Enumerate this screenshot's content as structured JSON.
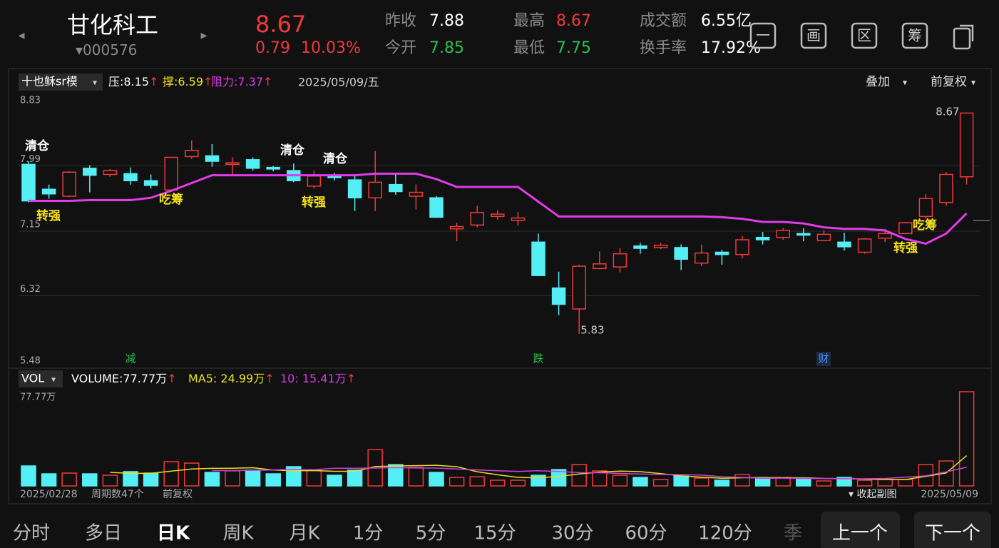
{
  "header": {
    "name": "甘化科工",
    "code_prefix": "▾",
    "code": "000576",
    "price": "8.67",
    "change": "0.79",
    "pct": "10.03%",
    "prev_label": "昨收",
    "prev": "7.88",
    "open_label": "今开",
    "open": "7.85",
    "high_label": "最高",
    "high": "8.67",
    "low_label": "最低",
    "low": "7.75",
    "amount_label": "成交额",
    "amount": "6.55亿",
    "turnover_label": "换手率",
    "turnover": "17.92%",
    "icons": [
      "一",
      "画",
      "区",
      "筹"
    ]
  },
  "toolbar": {
    "indicator": "十也稣sr模",
    "press": "压:8.15",
    "support": "撑:6.59",
    "resist": "阻力:7.37",
    "arrow": "↑",
    "date": "2025/05/09/五",
    "overlay": "叠加",
    "adjust": "前复权"
  },
  "chart_data": [
    {
      "type": "candlestick",
      "ylim": [
        5.48,
        8.83
      ],
      "yticks": [
        8.83,
        7.99,
        7.15,
        6.32,
        5.48
      ],
      "up_color": "#f03a3a",
      "down_color": "#54eef5",
      "grid": true,
      "open": [
        8.01,
        7.69,
        7.6,
        7.96,
        7.88,
        7.89,
        7.8,
        7.68,
        8.11,
        8.12,
        8.01,
        8.07,
        7.97,
        7.93,
        7.73,
        7.87,
        7.81,
        7.58,
        7.75,
        7.6,
        7.58,
        7.18,
        7.23,
        7.34,
        7.29,
        7.01,
        6.42,
        6.15,
        6.67,
        6.69,
        6.96,
        6.94,
        6.94,
        6.74,
        6.88,
        6.85,
        7.07,
        7.07,
        7.12,
        7.03,
        7.01,
        6.88,
        7.06,
        7.12,
        7.34,
        7.52,
        7.85
      ],
      "high": [
        8.05,
        7.75,
        7.92,
        8.0,
        7.95,
        7.97,
        7.88,
        8.1,
        8.32,
        8.27,
        8.1,
        8.1,
        7.99,
        8.02,
        7.93,
        7.9,
        7.88,
        8.18,
        7.88,
        7.75,
        7.6,
        7.26,
        7.48,
        7.42,
        7.4,
        7.12,
        6.63,
        6.72,
        6.89,
        6.93,
        7.0,
        7.0,
        6.98,
        6.98,
        6.91,
        7.09,
        7.14,
        7.19,
        7.19,
        7.16,
        7.13,
        7.06,
        7.18,
        7.27,
        7.63,
        7.91,
        8.67
      ],
      "low": [
        7.52,
        7.57,
        7.59,
        7.65,
        7.85,
        7.75,
        7.7,
        7.67,
        8.08,
        7.98,
        7.88,
        7.93,
        7.92,
        7.78,
        7.7,
        7.8,
        7.41,
        7.41,
        7.62,
        7.43,
        7.32,
        7.02,
        7.2,
        7.3,
        7.22,
        6.58,
        6.07,
        5.83,
        6.66,
        6.62,
        6.86,
        6.92,
        6.65,
        6.7,
        6.72,
        6.8,
        6.98,
        7.04,
        7.02,
        7.02,
        6.9,
        6.86,
        7.01,
        7.11,
        7.31,
        7.48,
        7.75
      ],
      "close": [
        7.54,
        7.63,
        7.91,
        7.87,
        7.93,
        7.8,
        7.74,
        8.1,
        8.19,
        8.05,
        8.03,
        7.96,
        7.95,
        7.8,
        7.86,
        7.84,
        7.58,
        7.78,
        7.66,
        7.65,
        7.33,
        7.21,
        7.39,
        7.37,
        7.32,
        6.58,
        6.21,
        6.7,
        6.73,
        6.86,
        6.93,
        6.97,
        6.79,
        6.87,
        6.85,
        7.04,
        7.04,
        7.16,
        7.1,
        7.11,
        6.95,
        7.05,
        7.12,
        7.26,
        7.57,
        7.88,
        8.67
      ],
      "line": {
        "color": "#e03ce8",
        "values": [
          7.54,
          7.54,
          7.54,
          7.55,
          7.55,
          7.55,
          7.58,
          7.67,
          7.77,
          7.87,
          7.87,
          7.87,
          7.87,
          7.87,
          7.87,
          7.87,
          7.87,
          7.89,
          7.89,
          7.89,
          7.82,
          7.72,
          7.72,
          7.72,
          7.72,
          7.53,
          7.34,
          7.34,
          7.34,
          7.34,
          7.34,
          7.34,
          7.34,
          7.34,
          7.33,
          7.31,
          7.27,
          7.27,
          7.25,
          7.2,
          7.18,
          7.18,
          7.16,
          7.05,
          6.99,
          7.12,
          7.38
        ]
      },
      "annotations": [
        {
          "text": "清仓",
          "color": "#ffffff"
        },
        {
          "text": "转强",
          "color": "#f5e11c"
        },
        {
          "text": "吃筹",
          "color": "#f5e11c"
        },
        {
          "text": "清仓",
          "color": "#ffffff"
        },
        {
          "text": "转强",
          "color": "#f5e11c"
        },
        {
          "text": "清仓",
          "color": "#ffffff"
        },
        {
          "text": "转强",
          "color": "#f5e11c"
        },
        {
          "text": "吃筹",
          "color": "#f5e11c"
        }
      ],
      "events": [
        {
          "text": "减",
          "color": "#2fbf4f"
        },
        {
          "text": "跌",
          "color": "#2fbf4f"
        },
        {
          "text": "财",
          "color": "#4a8cf0"
        }
      ]
    },
    {
      "type": "bar",
      "label": "VOL",
      "volume_label": "VOLUME:77.77万",
      "ma5_label": "MA5: 24.99万",
      "ma10_label": "10: 15.41万",
      "ylim": [
        0,
        77.77
      ],
      "yticks": [
        {
          "value": 77.77,
          "label": "77.77万"
        }
      ],
      "values": [
        16.5,
        10,
        10.6,
        10,
        8.8,
        11.8,
        10.6,
        20,
        18.8,
        11.2,
        12.4,
        13,
        10,
        15.9,
        13,
        8.8,
        13,
        30,
        17.6,
        15.3,
        11.2,
        7,
        7.6,
        4.7,
        4.7,
        8.8,
        13.5,
        17.6,
        12.4,
        8.8,
        7,
        5.3,
        8.2,
        6.5,
        4.7,
        9.4,
        6.5,
        7,
        5.9,
        4.1,
        7,
        4.7,
        5.3,
        5.3,
        17.6,
        20.6,
        77.77
      ],
      "ma5": {
        "color": "#e8e020",
        "values": [
          null,
          null,
          null,
          null,
          11.2,
          10.4,
          10.4,
          12.2,
          14,
          14.5,
          14.6,
          15,
          13.1,
          12.5,
          12.7,
          12.1,
          12.1,
          16,
          16.5,
          16.7,
          17,
          15.9,
          11.7,
          9.2,
          7.1,
          6.6,
          7.9,
          9.9,
          11.4,
          12.2,
          11.8,
          10.2,
          8.3,
          7.2,
          6.3,
          6.8,
          7,
          6.8,
          6.7,
          6.2,
          6.1,
          5.6,
          5.3,
          5.3,
          7.9,
          10.7,
          24.99
        ]
      },
      "ma10": {
        "color": "#d040e0",
        "values": [
          null,
          null,
          null,
          null,
          null,
          null,
          null,
          null,
          null,
          12.7,
          12.7,
          12.8,
          13.2,
          13.7,
          13.4,
          14.6,
          14.6,
          14.8,
          15.1,
          14.8,
          14.7,
          14,
          13.2,
          12.5,
          12,
          12.5,
          11.9,
          11,
          10.9,
          10.3,
          9.8,
          9.5,
          9.3,
          9,
          7.6,
          7,
          6.3,
          6.4,
          6.2,
          6.1,
          6,
          5.9,
          6.2,
          7.2,
          8.3,
          11.6,
          15.41
        ]
      },
      "start": "2025/02/28",
      "periods": "周期数47个",
      "adjust": "前复权",
      "collapse": "▾ 收起副图",
      "end": "2025/05/09"
    }
  ],
  "tabs": [
    "分时",
    "多日",
    "日K",
    "周K",
    "月K",
    "1分",
    "5分",
    "15分",
    "30分",
    "60分",
    "120分",
    "季"
  ],
  "buttons": [
    "上一个",
    "下一个"
  ]
}
